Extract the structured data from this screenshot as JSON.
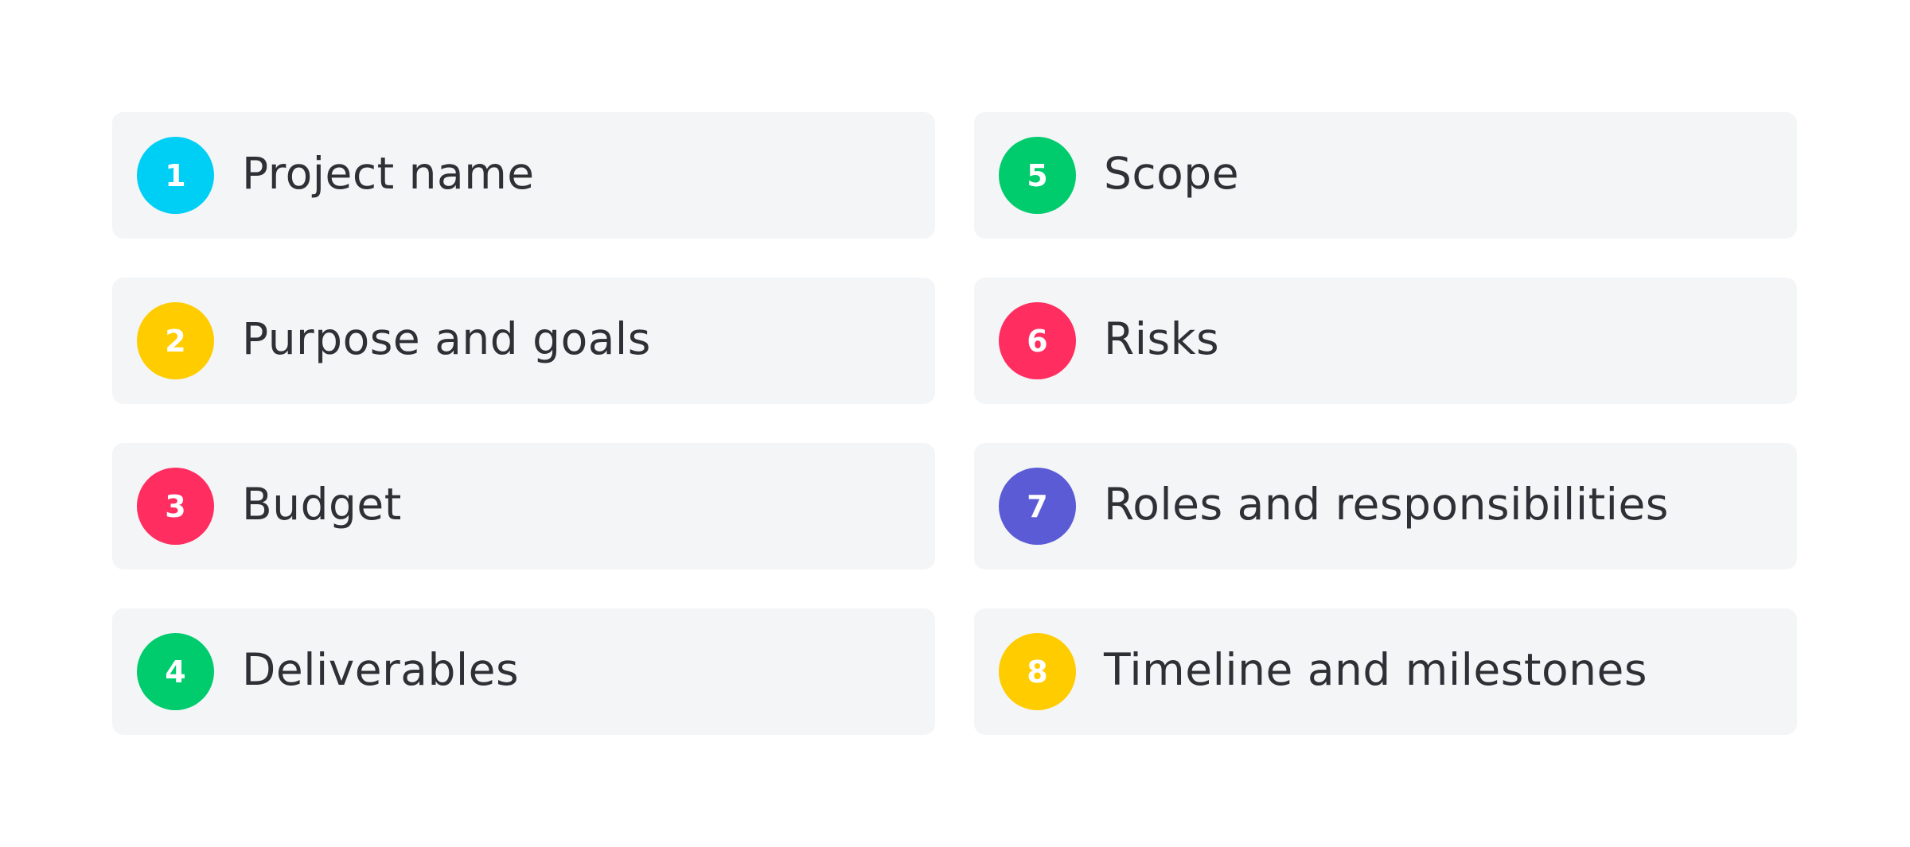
{
  "items": [
    {
      "number": "1",
      "label": "Project name",
      "color": "#00cff5"
    },
    {
      "number": "2",
      "label": "Purpose and goals",
      "color": "#ffcc00"
    },
    {
      "number": "3",
      "label": "Budget",
      "color": "#ff2d60"
    },
    {
      "number": "4",
      "label": "Deliverables",
      "color": "#00cc6e"
    },
    {
      "number": "5",
      "label": "Scope",
      "color": "#00cc6e"
    },
    {
      "number": "6",
      "label": "Risks",
      "color": "#ff2d60"
    },
    {
      "number": "7",
      "label": "Roles and responsibilities",
      "color": "#5b5bd6"
    },
    {
      "number": "8",
      "label": "Timeline and milestones",
      "color": "#ffcc00"
    }
  ]
}
